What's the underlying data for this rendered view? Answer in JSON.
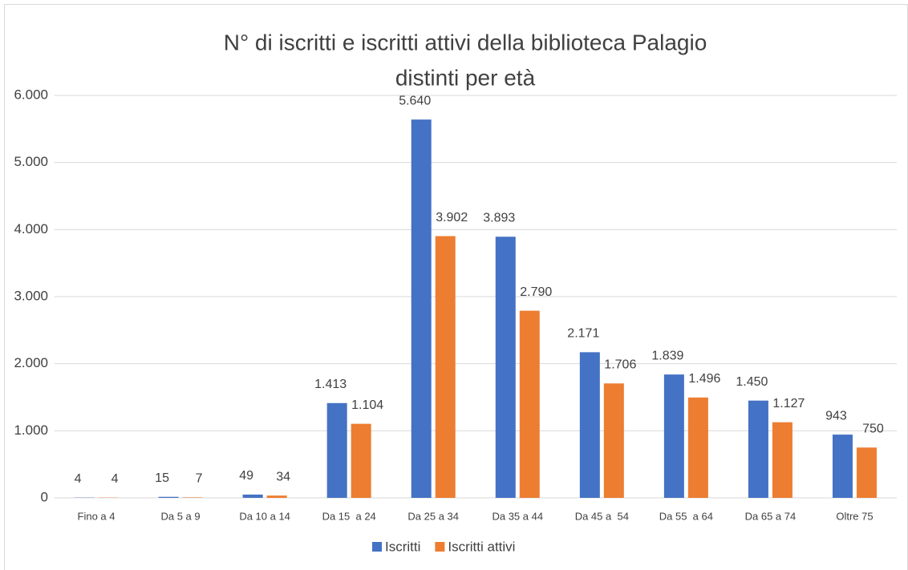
{
  "chart_data": {
    "type": "bar",
    "title": [
      "N° di iscritti e iscritti attivi della biblioteca Palagio",
      "distinti per età"
    ],
    "categories": [
      "Fino a 4",
      "Da 5 a 9",
      "Da 10 a 14",
      "Da 15  a 24",
      "Da 25 a 34",
      "Da 35 a 44",
      "Da 45 a  54",
      "Da 55  a 64",
      "Da 65 a 74",
      "Oltre 75"
    ],
    "series": [
      {
        "name": "Iscritti",
        "color": "#4472c4",
        "values": [
          4,
          15,
          49,
          1413,
          5640,
          3893,
          2171,
          1839,
          1450,
          943
        ],
        "value_labels": [
          "4",
          "15",
          "49",
          "1.413",
          "5.640",
          "3.893",
          "2.171",
          "1.839",
          "1.450",
          "943"
        ]
      },
      {
        "name": "Iscritti attivi",
        "color": "#ed7d31",
        "values": [
          4,
          7,
          34,
          1104,
          3902,
          2790,
          1706,
          1496,
          1127,
          750
        ],
        "value_labels": [
          "4",
          "7",
          "34",
          "1.104",
          "3.902",
          "2.790",
          "1.706",
          "1.496",
          "1.127",
          "750"
        ]
      }
    ],
    "ylim": [
      0,
      6000
    ],
    "yticks": [
      0,
      {
        "value": 1000,
        "label": "1.000"
      },
      {
        "value": 2000,
        "label": "2.000"
      },
      {
        "value": 3000,
        "label": "3.000"
      },
      {
        "value": 4000,
        "label": "4.000"
      },
      {
        "value": 5000,
        "label": "5.000"
      },
      {
        "value": 6000,
        "label": "6.000"
      }
    ],
    "grid": true,
    "legend": "bottom"
  }
}
